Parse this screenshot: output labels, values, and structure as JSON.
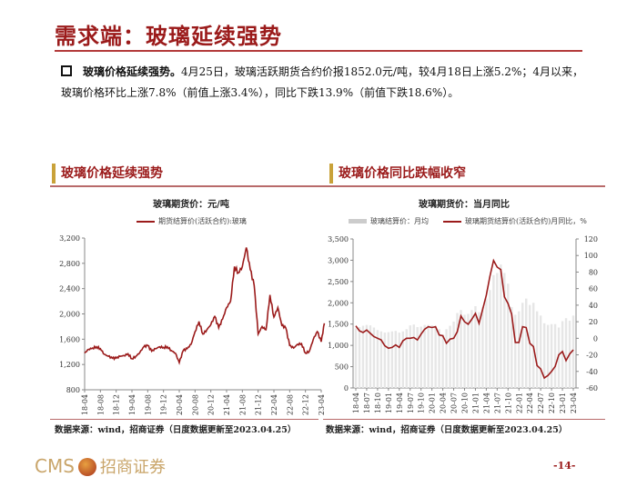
{
  "title": "需求端：玻璃延续强势",
  "bullet": {
    "lead": "玻璃价格延续强势。",
    "text": "4月25日，玻璃活跃期货合约价报1852.0元/吨，较4月18日上涨5.2%；4月以来，玻璃价格环比上涨7.8%（前值上涨3.4%），同比下跌13.9%（前值下跌18.6%）。"
  },
  "sections": {
    "left": "玻璃价格延续强势",
    "right": "玻璃价格同比跌幅收窄"
  },
  "colors": {
    "brand_red": "#9b1b1b",
    "line": "#9b1b1b",
    "bar": "#e6e6e6",
    "accent_gold": "#c9a23a"
  },
  "chart_data": [
    {
      "type": "line",
      "title": "玻璃期货价：元/吨",
      "series": [
        {
          "name": "期货结算价(活跃合约):玻璃",
          "x": [
            "2018-04",
            "2018-05",
            "2018-06",
            "2018-07",
            "2018-08",
            "2018-09",
            "2018-10",
            "2018-11",
            "2018-12",
            "2019-01",
            "2019-02",
            "2019-03",
            "2019-04",
            "2019-05",
            "2019-06",
            "2019-07",
            "2019-08",
            "2019-09",
            "2019-10",
            "2019-11",
            "2019-12",
            "2020-01",
            "2020-02",
            "2020-03",
            "2020-04",
            "2020-05",
            "2020-06",
            "2020-07",
            "2020-08",
            "2020-09",
            "2020-10",
            "2020-11",
            "2020-12",
            "2021-01",
            "2021-02",
            "2021-03",
            "2021-04",
            "2021-05",
            "2021-06",
            "2021-07",
            "2021-08",
            "2021-09",
            "2021-10",
            "2021-11",
            "2021-12",
            "2022-01",
            "2022-02",
            "2022-03",
            "2022-04",
            "2022-05",
            "2022-06",
            "2022-07",
            "2022-08",
            "2022-09",
            "2022-10",
            "2022-11",
            "2022-12",
            "2023-01",
            "2023-02",
            "2023-03",
            "2023-04",
            "2023-04-25"
          ],
          "values": [
            1380,
            1440,
            1460,
            1480,
            1450,
            1360,
            1330,
            1300,
            1300,
            1330,
            1340,
            1370,
            1290,
            1330,
            1390,
            1480,
            1500,
            1410,
            1450,
            1480,
            1470,
            1480,
            1420,
            1380,
            1230,
            1420,
            1450,
            1520,
            1720,
            1880,
            1680,
            1750,
            1830,
            1960,
            1780,
            1920,
            2100,
            2200,
            2750,
            2650,
            2750,
            3050,
            2700,
            2450,
            1680,
            1800,
            1750,
            2300,
            1950,
            2100,
            1820,
            1780,
            1500,
            1460,
            1520,
            1530,
            1380,
            1410,
            1600,
            1720,
            1560,
            1852
          ]
        }
      ],
      "ylim": [
        800,
        3200
      ],
      "yticks": [
        "800",
        "1,200",
        "1,600",
        "2,000",
        "2,400",
        "2,800",
        "3,200"
      ],
      "xticks": [
        "18-04",
        "18-08",
        "18-12",
        "19-04",
        "19-08",
        "19-12",
        "20-04",
        "20-08",
        "20-12",
        "21-04",
        "21-08",
        "21-12",
        "22-04",
        "22-08",
        "22-12",
        "23-04"
      ]
    },
    {
      "type": "bar+line",
      "title": "玻璃期货价：当月同比",
      "categories": [
        "18-04",
        "18-05",
        "18-06",
        "18-07",
        "18-08",
        "18-09",
        "18-10",
        "18-11",
        "18-12",
        "19-01",
        "19-02",
        "19-03",
        "19-04",
        "19-05",
        "19-06",
        "19-07",
        "19-08",
        "19-09",
        "19-10",
        "19-11",
        "19-12",
        "20-01",
        "20-02",
        "20-03",
        "20-04",
        "20-05",
        "20-06",
        "20-07",
        "20-08",
        "20-09",
        "20-10",
        "20-11",
        "20-12",
        "21-01",
        "21-02",
        "21-03",
        "21-04",
        "21-05",
        "21-06",
        "21-07",
        "21-08",
        "21-09",
        "21-10",
        "21-11",
        "21-12",
        "22-01",
        "22-02",
        "22-03",
        "22-04",
        "22-05",
        "22-06",
        "22-07",
        "22-08",
        "22-09",
        "22-10",
        "22-11",
        "22-12",
        "23-01",
        "23-02",
        "23-03",
        "23-04"
      ],
      "series": [
        {
          "name": "玻璃结算价：月均",
          "axis": "left",
          "type": "bar",
          "values": [
            1400,
            1430,
            1460,
            1480,
            1470,
            1420,
            1360,
            1330,
            1300,
            1310,
            1330,
            1340,
            1300,
            1330,
            1380,
            1470,
            1490,
            1430,
            1440,
            1480,
            1480,
            1470,
            1420,
            1380,
            1260,
            1380,
            1460,
            1560,
            1760,
            1830,
            1720,
            1740,
            1830,
            1920,
            1780,
            1900,
            2100,
            2300,
            2650,
            2700,
            2900,
            2700,
            2450,
            1900,
            1720,
            1800,
            2000,
            2100,
            1950,
            2000,
            1800,
            1700,
            1520,
            1480,
            1500,
            1500,
            1420,
            1570,
            1640,
            1580,
            1700
          ]
        },
        {
          "name": "玻璃期货结算价(活跃合约)月同比，%",
          "axis": "right",
          "type": "line",
          "values": [
            15,
            9,
            7,
            10,
            6,
            2,
            0,
            -2,
            -9,
            -12,
            -11,
            -8,
            -11,
            -3,
            0,
            0,
            1,
            -2,
            5,
            11,
            14,
            13,
            14,
            4,
            3,
            -6,
            -1,
            0,
            8,
            27,
            20,
            17,
            23,
            30,
            18,
            35,
            52,
            75,
            94,
            86,
            83,
            50,
            42,
            29,
            -5,
            -5,
            14,
            13,
            -6,
            -10,
            -33,
            -37,
            -48,
            -45,
            -40,
            -34,
            -20,
            -16,
            -27,
            -19,
            -14
          ]
        }
      ],
      "ylim_left": [
        0,
        3500
      ],
      "ylim_right": [
        -60,
        120
      ],
      "yticks_left": [
        "0",
        "500",
        "1,000",
        "1,500",
        "2,000",
        "2,500",
        "3,000",
        "3,500"
      ],
      "yticks_right": [
        "-60",
        "-40",
        "-20",
        "0",
        "20",
        "40",
        "60",
        "80",
        "100",
        "120"
      ],
      "xticks": [
        "18-04",
        "18-07",
        "18-10",
        "19-01",
        "19-04",
        "19-07",
        "19-10",
        "20-01",
        "20-04",
        "20-07",
        "20-10",
        "21-01",
        "21-04",
        "21-07",
        "21-10",
        "22-01",
        "22-04",
        "22-07",
        "22-10",
        "23-01",
        "23-04"
      ]
    }
  ],
  "source_left": "数据来源：wind，招商证券（日度数据更新至2023.04.25）",
  "source_right": "数据来源：wind，招商证券（日度数据更新至2023.04.25）",
  "logo": {
    "text": "CMS",
    "cn": "招商证券"
  },
  "page_number": "-14-"
}
